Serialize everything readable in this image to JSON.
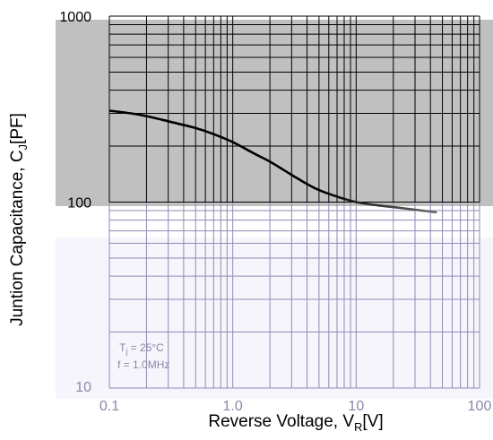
{
  "chart_data": {
    "type": "line",
    "title": "",
    "xscale": "log",
    "yscale": "log",
    "xlim": [
      0.1,
      100
    ],
    "ylim": [
      10,
      1000
    ],
    "x_ticks": [
      "0.1",
      "1.0",
      "10",
      "100"
    ],
    "y_ticks": [
      "1000",
      "100",
      "10"
    ],
    "xlabel": {
      "main": "Reverse Voltage, V",
      "sub": "R",
      "unit": "[V]"
    },
    "ylabel": {
      "main": "Juntion Capacitance, C",
      "sub": "J",
      "unit": "[PF]"
    },
    "annotation": {
      "tj_main": "T",
      "tj_sub": "j",
      "tj_value": " = 25°C",
      "freq": "f = 1.0MHz"
    },
    "grid": true,
    "series": [
      {
        "x": [
          0.1,
          0.15,
          0.2,
          0.3,
          0.5,
          0.7,
          1.0,
          1.5,
          2.0,
          3.0,
          4.0,
          5.0,
          7.0,
          10,
          15,
          20,
          30,
          45
        ],
        "y": [
          310,
          300,
          290,
          272,
          250,
          232,
          210,
          182,
          165,
          140,
          125,
          116,
          107,
          100,
          96,
          94,
          91,
          88
        ]
      }
    ],
    "colors": {
      "upper_band": "#c0c0c0",
      "lower_band": "#f6f5fb",
      "upper_grid": "#000000",
      "lower_grid": "#8f8bb5",
      "curve": "#000000",
      "curve_fade": "#6b6b6b",
      "lower_text": "#8a87a8"
    }
  }
}
